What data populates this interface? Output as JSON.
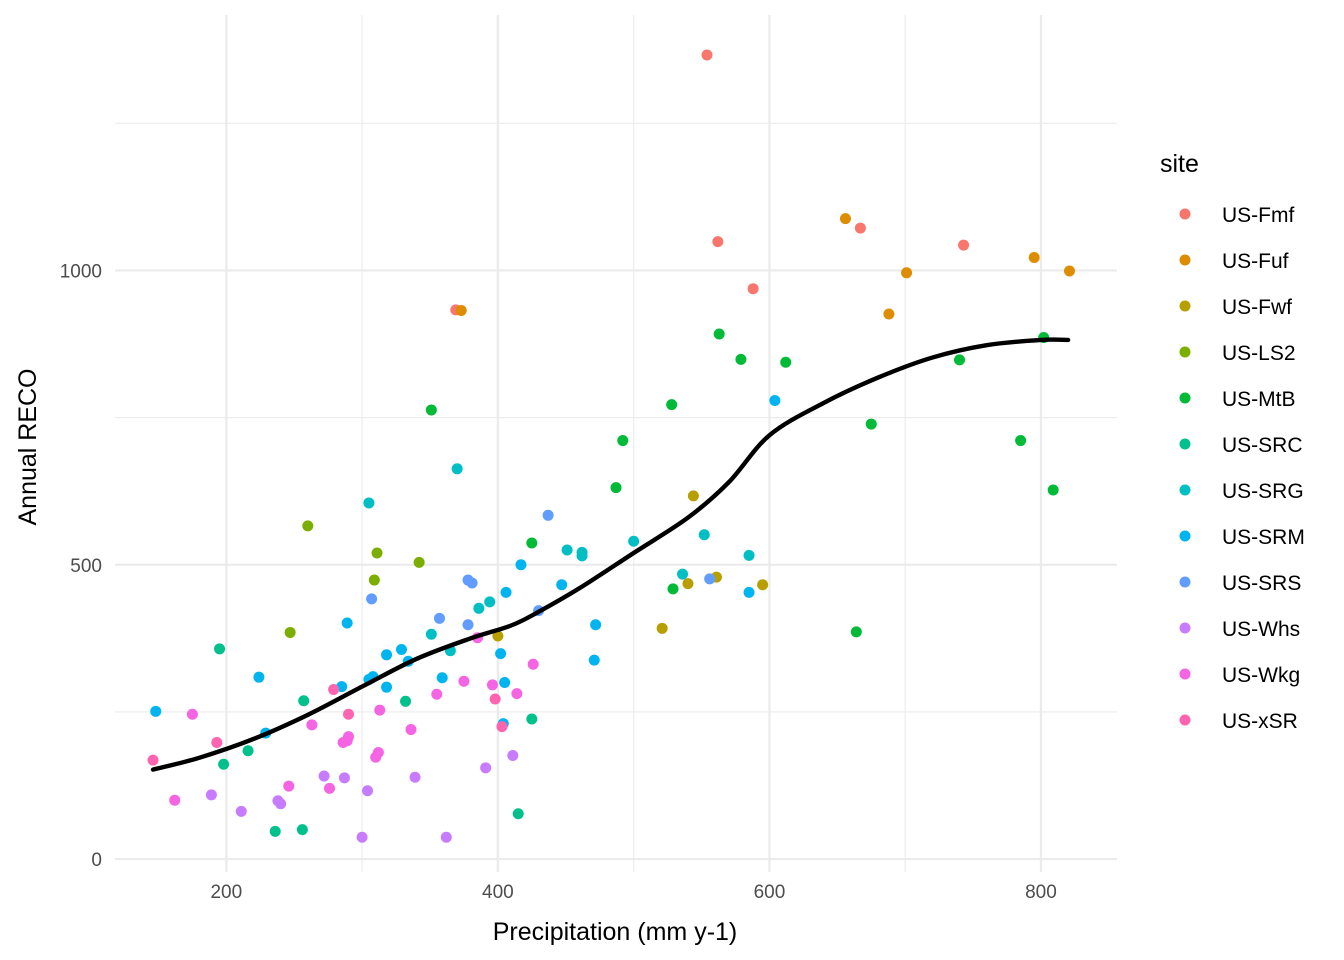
{
  "chart_data": {
    "type": "scatter",
    "xlabel": "Precipitation (mm y-1)",
    "ylabel": "Annual RECO",
    "xlim": [
      118,
      856
    ],
    "ylim": [
      -22,
      1434
    ],
    "x_ticks": [
      {
        "value": 200,
        "label": "200"
      },
      {
        "value": 400,
        "label": "400"
      },
      {
        "value": 600,
        "label": "600"
      },
      {
        "value": 800,
        "label": "800"
      }
    ],
    "y_ticks": [
      {
        "value": 0,
        "label": "0"
      },
      {
        "value": 500,
        "label": "500"
      },
      {
        "value": 1000,
        "label": "1000"
      }
    ],
    "x_minor": [
      300,
      500,
      700
    ],
    "y_minor": [
      250,
      750,
      1250
    ],
    "grid": true,
    "legend": {
      "title": "site",
      "position": "right"
    },
    "series": [
      {
        "name": "US-Fmf",
        "color": "#F8766D",
        "points": [
          [
            554,
            1366
          ],
          [
            562,
            1049
          ],
          [
            588,
            969
          ],
          [
            667,
            1072
          ],
          [
            743,
            1043
          ],
          [
            369,
            933
          ]
        ]
      },
      {
        "name": "US-Fuf",
        "color": "#DE8C00",
        "points": [
          [
            373,
            932
          ],
          [
            656,
            1088
          ],
          [
            701,
            996
          ],
          [
            688,
            926
          ],
          [
            795,
            1022
          ],
          [
            821,
            999
          ]
        ]
      },
      {
        "name": "US-Fwf",
        "color": "#B79F00",
        "points": [
          [
            544,
            617
          ],
          [
            595,
            466
          ],
          [
            561,
            479
          ],
          [
            540,
            468
          ],
          [
            521,
            392
          ],
          [
            400,
            379
          ]
        ]
      },
      {
        "name": "US-LS2",
        "color": "#7CAE00",
        "points": [
          [
            260,
            566
          ],
          [
            311,
            520
          ],
          [
            309,
            474
          ],
          [
            342,
            504
          ],
          [
            247,
            385
          ]
        ]
      },
      {
        "name": "US-MtB",
        "color": "#00BA38",
        "points": [
          [
            351,
            763
          ],
          [
            492,
            711
          ],
          [
            528,
            772
          ],
          [
            563,
            892
          ],
          [
            579,
            849
          ],
          [
            612,
            844
          ],
          [
            487,
            631
          ],
          [
            425,
            537
          ],
          [
            529,
            459
          ],
          [
            664,
            386
          ],
          [
            675,
            739
          ],
          [
            740,
            848
          ],
          [
            785,
            711
          ],
          [
            802,
            886
          ],
          [
            809,
            627
          ]
        ]
      },
      {
        "name": "US-SRC",
        "color": "#00C08B",
        "points": [
          [
            195,
            357
          ],
          [
            198,
            161
          ],
          [
            216,
            184
          ],
          [
            257,
            269
          ],
          [
            236,
            47
          ],
          [
            256,
            50
          ],
          [
            332,
            268
          ],
          [
            425,
            238
          ],
          [
            415,
            77
          ]
        ]
      },
      {
        "name": "US-SRG",
        "color": "#00BFC4",
        "points": [
          [
            305,
            605
          ],
          [
            370,
            663
          ],
          [
            451,
            525
          ],
          [
            462,
            521
          ],
          [
            462,
            515
          ],
          [
            500,
            540
          ],
          [
            552,
            551
          ],
          [
            536,
            484
          ],
          [
            585,
            516
          ],
          [
            394,
            437
          ],
          [
            386,
            426
          ],
          [
            351,
            382
          ],
          [
            365,
            354
          ]
        ]
      },
      {
        "name": "US-SRM",
        "color": "#00B4F0",
        "points": [
          [
            148,
            251
          ],
          [
            224,
            309
          ],
          [
            229,
            214
          ],
          [
            285,
            293
          ],
          [
            289,
            401
          ],
          [
            305,
            305
          ],
          [
            308,
            310
          ],
          [
            318,
            292
          ],
          [
            318,
            347
          ],
          [
            329,
            356
          ],
          [
            334,
            336
          ],
          [
            359,
            308
          ],
          [
            405,
            300
          ],
          [
            402,
            349
          ],
          [
            406,
            453
          ],
          [
            417,
            500
          ],
          [
            447,
            466
          ],
          [
            472,
            398
          ],
          [
            471,
            338
          ],
          [
            585,
            453
          ],
          [
            604,
            779
          ],
          [
            404,
            230
          ]
        ]
      },
      {
        "name": "US-SRS",
        "color": "#619CFF",
        "points": [
          [
            307,
            442
          ],
          [
            357,
            409
          ],
          [
            378,
            474
          ],
          [
            381,
            469
          ],
          [
            378,
            398
          ],
          [
            430,
            422
          ],
          [
            437,
            584
          ],
          [
            556,
            476
          ]
        ]
      },
      {
        "name": "US-Whs",
        "color": "#C77CFF",
        "points": [
          [
            189,
            109
          ],
          [
            211,
            81
          ],
          [
            238,
            99
          ],
          [
            240,
            94
          ],
          [
            272,
            141
          ],
          [
            287,
            138
          ],
          [
            304,
            116
          ],
          [
            300,
            37
          ],
          [
            339,
            139
          ],
          [
            362,
            37
          ],
          [
            391,
            155
          ],
          [
            411,
            176
          ]
        ]
      },
      {
        "name": "US-Wkg",
        "color": "#F564E3",
        "points": [
          [
            162,
            100
          ],
          [
            175,
            246
          ],
          [
            246,
            124
          ],
          [
            263,
            228
          ],
          [
            276,
            120
          ],
          [
            286,
            198
          ],
          [
            289,
            201
          ],
          [
            290,
            208
          ],
          [
            310,
            173
          ],
          [
            312,
            181
          ],
          [
            313,
            253
          ],
          [
            336,
            220
          ],
          [
            355,
            280
          ],
          [
            375,
            302
          ],
          [
            385,
            376
          ],
          [
            396,
            296
          ],
          [
            414,
            281
          ],
          [
            426,
            331
          ]
        ]
      },
      {
        "name": "US-xSR",
        "color": "#FF64B0",
        "points": [
          [
            146,
            168
          ],
          [
            193,
            198
          ],
          [
            279,
            288
          ],
          [
            290,
            246
          ],
          [
            398,
            272
          ],
          [
            403,
            225
          ]
        ]
      }
    ],
    "smooth_line": {
      "color": "#000000",
      "points": [
        [
          146,
          152
        ],
        [
          180,
          172
        ],
        [
          220,
          204
        ],
        [
          260,
          245
        ],
        [
          300,
          293
        ],
        [
          340,
          340
        ],
        [
          380,
          375
        ],
        [
          410,
          397
        ],
        [
          430,
          420
        ],
        [
          460,
          460
        ],
        [
          500,
          520
        ],
        [
          540,
          580
        ],
        [
          570,
          640
        ],
        [
          600,
          720
        ],
        [
          640,
          775
        ],
        [
          680,
          818
        ],
        [
          720,
          852
        ],
        [
          760,
          873
        ],
        [
          800,
          882
        ],
        [
          820,
          882
        ]
      ]
    }
  }
}
